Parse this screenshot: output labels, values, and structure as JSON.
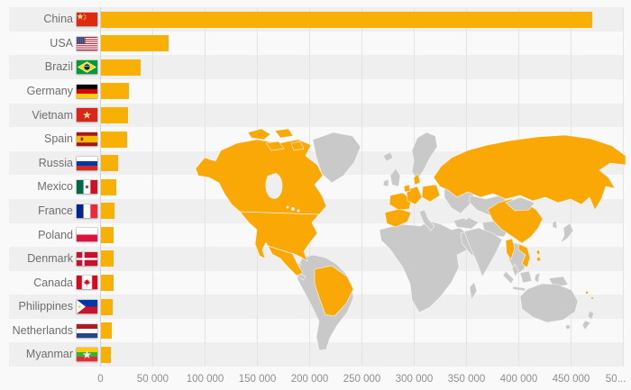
{
  "style": {
    "background": "#f9f9f9",
    "band_color": "#efefef",
    "gridline_color": "#e3e3e3",
    "zero_axis_color": "#c8d4e3",
    "label_color": "#6e6e6e",
    "axis_text_color": "#8f8f8f"
  },
  "chart_data": {
    "type": "bar",
    "orientation": "horizontal",
    "title": "",
    "xlabel": "",
    "ylabel": "",
    "xlim": [
      0,
      500000
    ],
    "grid": true,
    "bar_color": "#f9b005",
    "categories": [
      "China",
      "USA",
      "Brazil",
      "Germany",
      "Vietnam",
      "Spain",
      "Russia",
      "Mexico",
      "France",
      "Poland",
      "Denmark",
      "Canada",
      "Philippines",
      "Netherlands",
      "Myanmar"
    ],
    "values": [
      470000,
      65000,
      38000,
      27000,
      26500,
      25500,
      17000,
      15000,
      13500,
      12600,
      12400,
      12200,
      11600,
      11200,
      9800
    ],
    "flag_icons": [
      "china-flag-icon",
      "usa-flag-icon",
      "brazil-flag-icon",
      "germany-flag-icon",
      "vietnam-flag-icon",
      "spain-flag-icon",
      "russia-flag-icon",
      "mexico-flag-icon",
      "france-flag-icon",
      "poland-flag-icon",
      "denmark-flag-icon",
      "canada-flag-icon",
      "philippines-flag-icon",
      "netherlands-flag-icon",
      "myanmar-flag-icon"
    ],
    "x_ticks": [
      {
        "value": 0,
        "label": "0"
      },
      {
        "value": 50000,
        "label": "50 000"
      },
      {
        "value": 100000,
        "label": "100 000"
      },
      {
        "value": 150000,
        "label": "150 000"
      },
      {
        "value": 200000,
        "label": "200 000"
      },
      {
        "value": 250000,
        "label": "250 000"
      },
      {
        "value": 300000,
        "label": "300 000"
      },
      {
        "value": 350000,
        "label": "350 000"
      },
      {
        "value": 400000,
        "label": "400 000"
      },
      {
        "value": 450000,
        "label": "450 000"
      },
      {
        "value": 500000,
        "label": "50..."
      }
    ]
  },
  "map": {
    "land_color": "#c9c9c9",
    "highlight_color": "#f9a806",
    "border_color": "#f7f7f7",
    "highlighted_regions": [
      "North America (Canada, USA, Mexico)",
      "Brazil",
      "Spain",
      "France",
      "Germany",
      "Netherlands",
      "Denmark",
      "Poland",
      "Russia",
      "China",
      "Myanmar",
      "Vietnam",
      "Philippines"
    ]
  }
}
